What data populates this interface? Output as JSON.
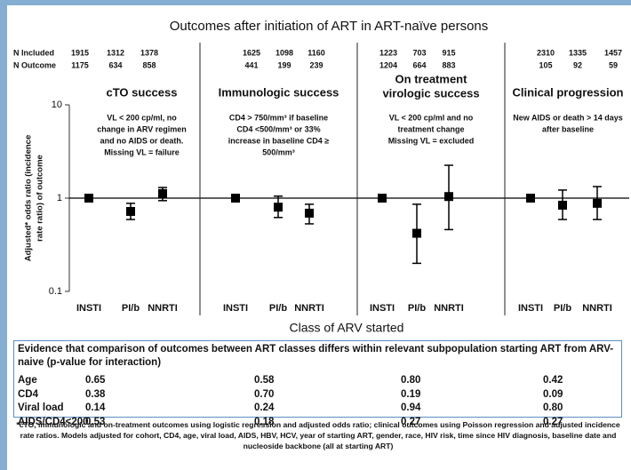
{
  "chart_data": {
    "type": "errorbar",
    "title": "Outcomes after initiation of ART in ART-naïve persons",
    "xlabel": "Class of ARV started",
    "ylabel": [
      "Adjusted* odds ratio (incidence",
      "rate ratio) of outcome"
    ],
    "ylim": [
      0.1,
      10
    ],
    "yticks": [
      0.1,
      1,
      10
    ],
    "log_scale": true,
    "color": "#000000",
    "categories": [
      "INSTI",
      "PI/b",
      "NNRTI"
    ],
    "n_included_label": "N Included",
    "n_outcome_label": "N Outcome",
    "panels": [
      {
        "title": [
          "cTO success"
        ],
        "note": [
          "VL < 200 cp/ml, no",
          "change in ARV regimen",
          "and no AIDS or death.",
          "Missing VL = failure"
        ],
        "n_included": [
          1915,
          1312,
          1378
        ],
        "n_outcome": [
          1175,
          634,
          858
        ],
        "values": [
          1,
          0.72,
          1.12
        ],
        "lower": [
          null,
          0.59,
          0.94
        ],
        "upper": [
          null,
          0.88,
          1.3
        ]
      },
      {
        "title": [
          "Immunologic success"
        ],
        "note": [
          "CD4 > 750/mm³ if baseline",
          "CD4 <500/mm³ or 33%",
          "increase in baseline CD4 ≥",
          "500/mm³"
        ],
        "n_included": [
          1625,
          1098,
          1160
        ],
        "n_outcome": [
          441,
          199,
          239
        ],
        "values": [
          1,
          0.8,
          0.69
        ],
        "lower": [
          null,
          0.62,
          0.53
        ],
        "upper": [
          null,
          1.05,
          0.86
        ]
      },
      {
        "title": [
          "On treatment",
          "virologic success"
        ],
        "note": [
          "VL < 200 cp/ml and no",
          "treatment change",
          "Missing VL = excluded"
        ],
        "n_included": [
          1223,
          703,
          915
        ],
        "n_outcome": [
          1204,
          664,
          883
        ],
        "values": [
          1,
          0.42,
          1.04
        ],
        "lower": [
          null,
          0.2,
          0.46
        ],
        "upper": [
          null,
          0.86,
          2.25
        ]
      },
      {
        "title": [
          "Clinical progression"
        ],
        "note": [
          "New AIDS or death > 14 days",
          "after baseline"
        ],
        "n_included": [
          2310,
          1335,
          1457
        ],
        "n_outcome": [
          105,
          92,
          59
        ],
        "values": [
          1,
          0.84,
          0.88
        ],
        "lower": [
          null,
          0.59,
          0.59
        ],
        "upper": [
          null,
          1.22,
          1.33
        ]
      }
    ]
  },
  "table": {
    "title": "Evidence that comparison of outcomes between ART classes differs within relevant subpopulation starting ART from ARV-naive (p-value for interaction)",
    "rows": [
      [
        "Age",
        "0.65",
        "0.58",
        "0.80",
        "0.42"
      ],
      [
        "CD4",
        "0.38",
        "0.70",
        "0.19",
        "0.09"
      ],
      [
        "Viral load",
        "0.14",
        "0.24",
        "0.94",
        "0.80"
      ],
      [
        "AIDS/CD4<200",
        "0.53",
        "0.18",
        "0.27",
        "0.27"
      ]
    ]
  },
  "footnote": "*cTO, immunologic and on-treatment outcomes using logistic regression and adjusted odds ratio; clinical outcomes using Poisson regression and adjusted incidence rate ratios.  Models adjusted for cohort, CD4, age, viral load, AIDS, HBV, HCV, year of starting ART, gender, race, HIV risk, time since HIV diagnosis, baseline date and nucleoside backbone (all at starting ART)"
}
